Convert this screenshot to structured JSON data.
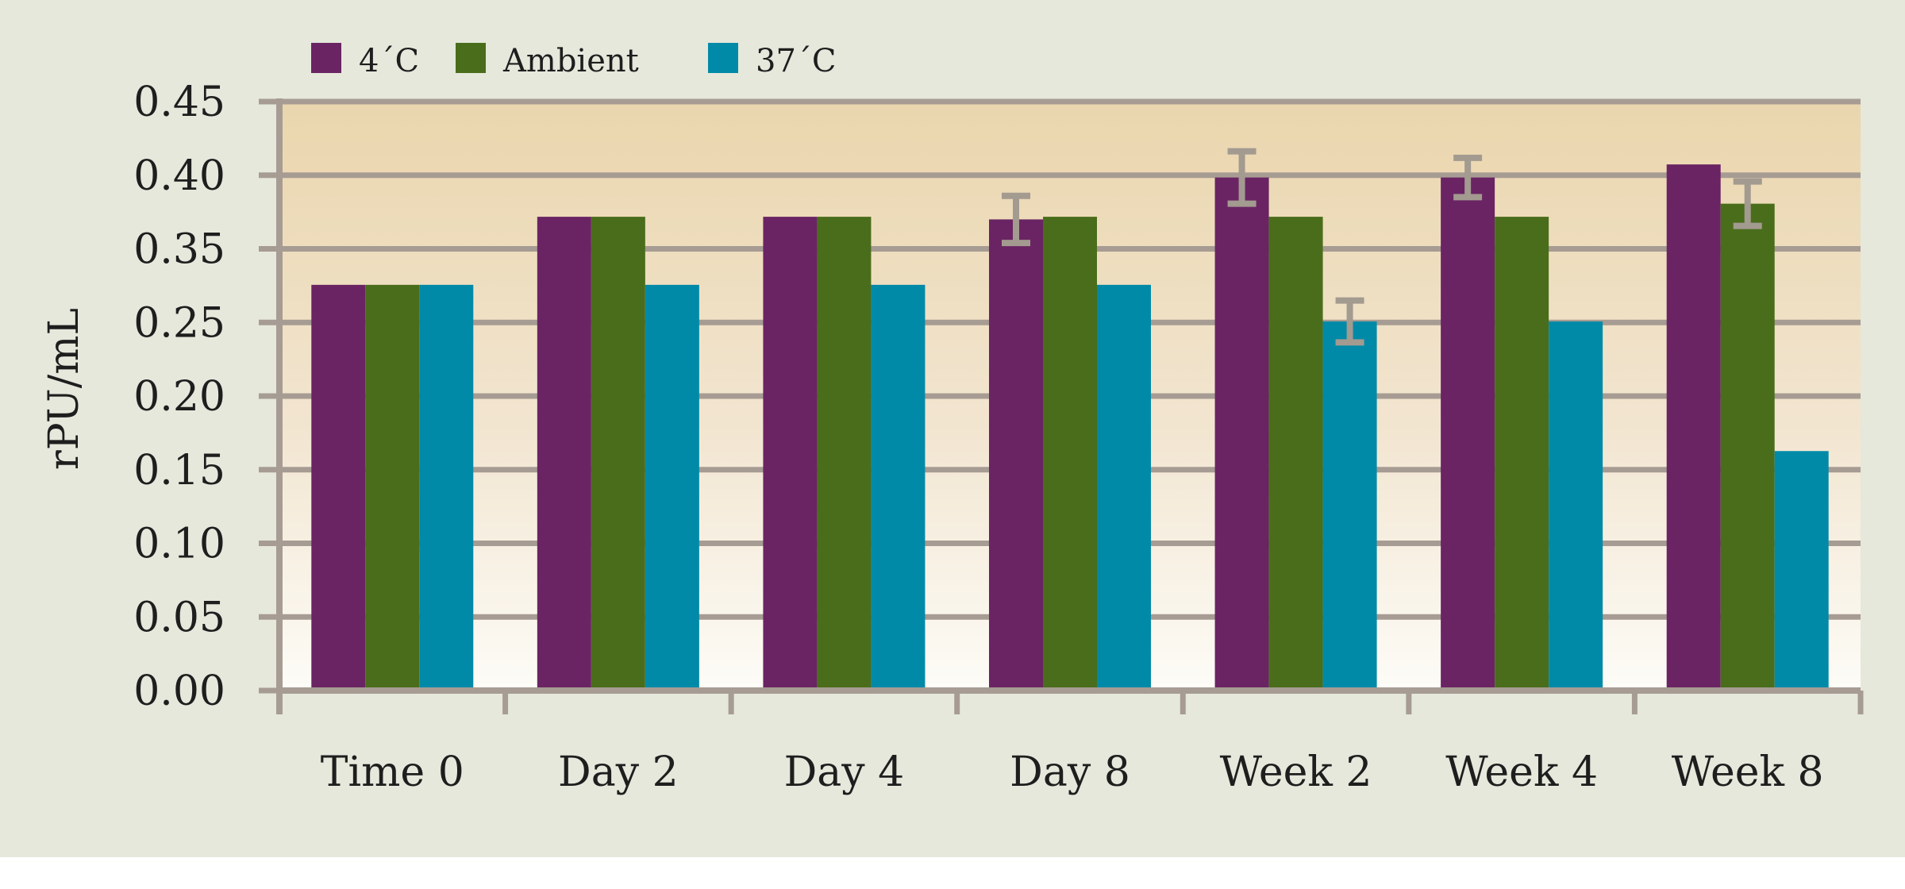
{
  "chart_data": {
    "type": "bar",
    "title": "",
    "xlabel": "",
    "ylabel": "rPU/mL",
    "ylim": [
      0,
      0.45
    ],
    "y_ticks": [
      "0.00",
      "0.05",
      "0.10",
      "0.15",
      "0.20",
      "0.25",
      "0.35",
      "0.40",
      "0.45"
    ],
    "grid": true,
    "legend_position": "top-left",
    "categories": [
      "Time 0",
      "Day 2",
      "Day 4",
      "Day 8",
      "Week 2",
      "Week 4",
      "Week 8"
    ],
    "series": [
      {
        "name": "4´C",
        "color": "#6a2463",
        "values": [
          0.31,
          0.362,
          0.362,
          0.36,
          0.392,
          0.392,
          0.402
        ],
        "error": [
          null,
          null,
          null,
          0.018,
          0.02,
          0.015,
          null
        ]
      },
      {
        "name": "Ambient",
        "color": "#4a6d1b",
        "values": [
          0.31,
          0.362,
          0.362,
          0.362,
          0.362,
          0.362,
          0.372
        ],
        "error": [
          null,
          null,
          null,
          null,
          null,
          null,
          0.017
        ]
      },
      {
        "name": "37´C",
        "color": "#008aa8",
        "values": [
          0.31,
          0.31,
          0.31,
          0.31,
          0.282,
          0.282,
          0.183
        ],
        "error": [
          null,
          null,
          null,
          null,
          0.016,
          null,
          null
        ]
      }
    ]
  }
}
